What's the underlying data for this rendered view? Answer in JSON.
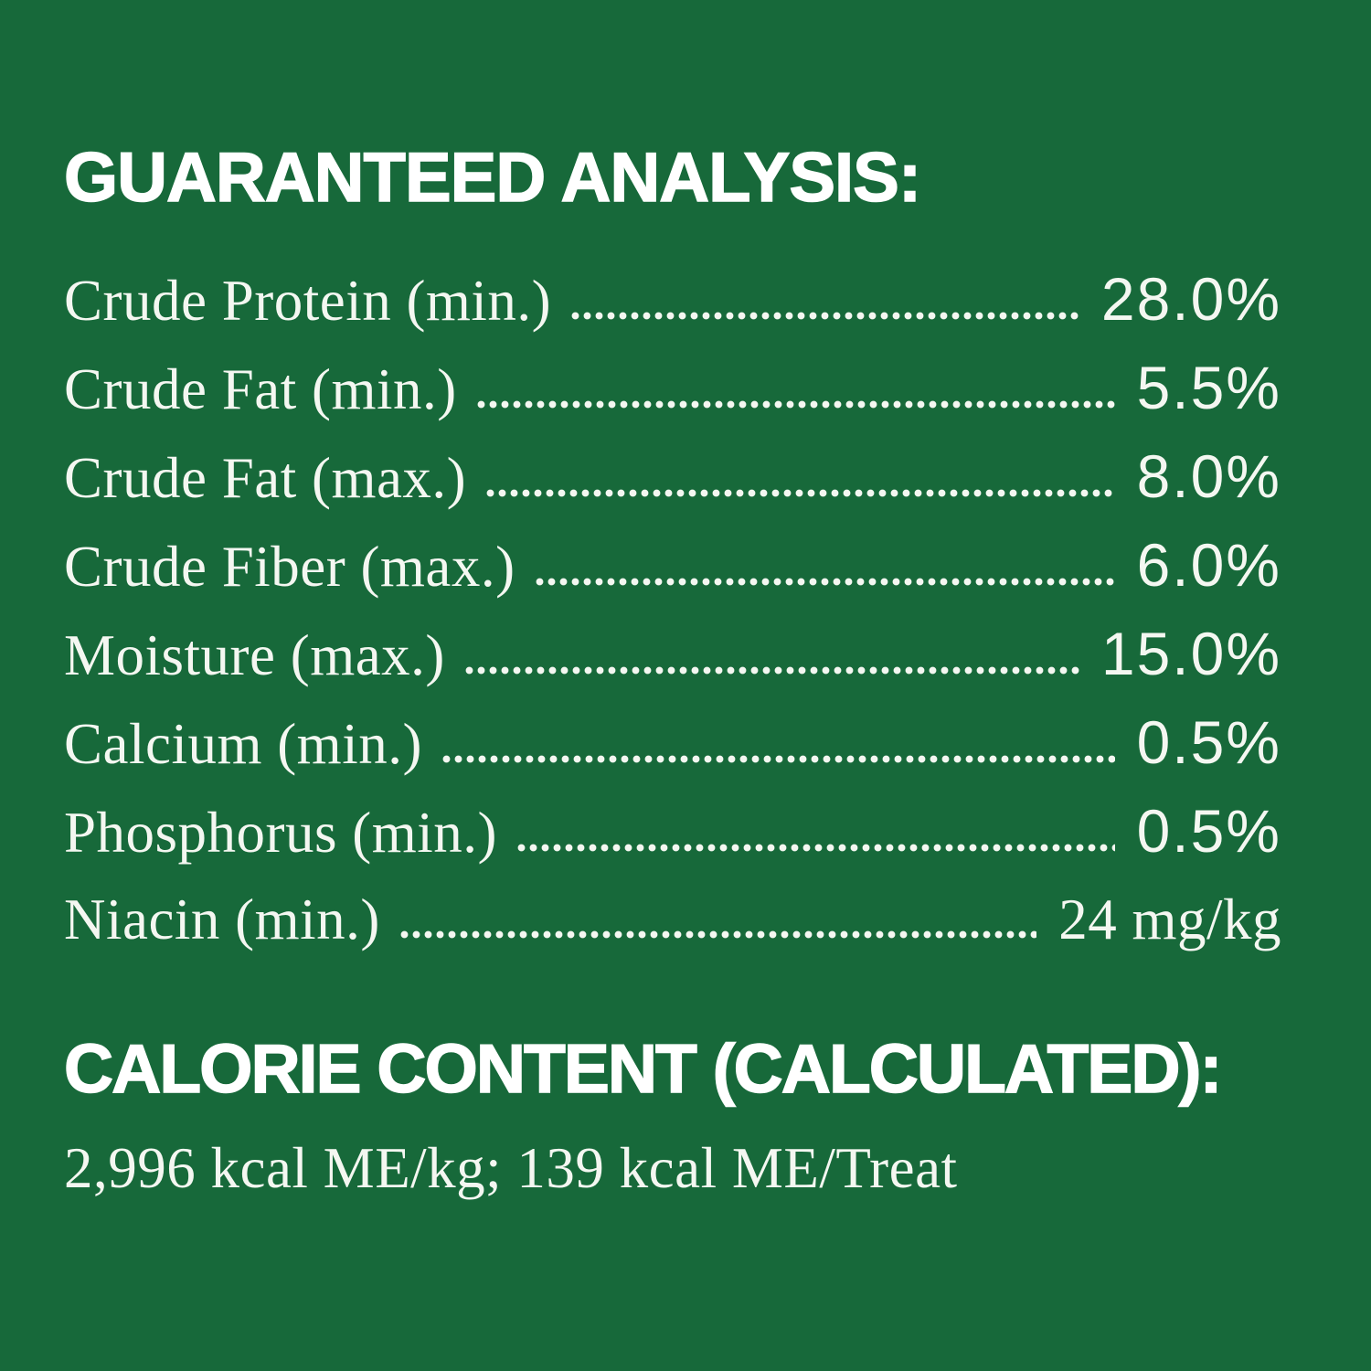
{
  "panel": {
    "background_color": "#17693A",
    "text_color": "#F4F7F1",
    "heading_color": "#FFFFFF"
  },
  "guaranteed_analysis": {
    "title": "GUARANTEED ANALYSIS:",
    "rows": [
      {
        "label": "Crude Protein (min.)",
        "value": "28.0%"
      },
      {
        "label": "Crude Fat (min.)",
        "value": "5.5%"
      },
      {
        "label": "Crude Fat (max.)",
        "value": "8.0%"
      },
      {
        "label": "Crude Fiber (max.)",
        "value": "6.0%"
      },
      {
        "label": "Moisture (max.)",
        "value": "15.0%"
      },
      {
        "label": "Calcium (min.)",
        "value": "0.5%"
      },
      {
        "label": "Phosphorus (min.)",
        "value": "0.5%"
      },
      {
        "label": "Niacin (min.)",
        "value": "24 mg/kg"
      }
    ]
  },
  "calorie_content": {
    "title": "CALORIE CONTENT (CALCULATED):",
    "value": "2,996 kcal ME/kg; 139 kcal ME/Treat"
  }
}
